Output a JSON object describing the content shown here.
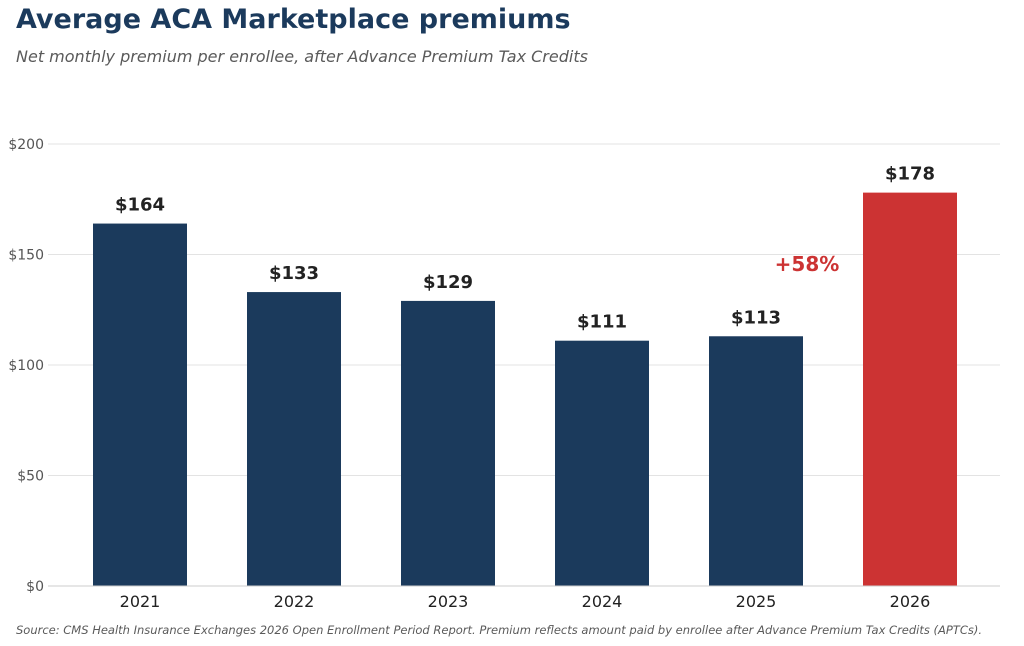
{
  "chart_data": {
    "type": "bar",
    "title": "Average ACA Marketplace premiums",
    "subtitle": "Net monthly premium per enrollee, after Advance Premium Tax Credits",
    "categories": [
      "2021",
      "2022",
      "2023",
      "2024",
      "2025",
      "2026"
    ],
    "values": [
      164,
      133,
      129,
      111,
      113,
      178
    ],
    "data_labels": [
      "$164",
      "$133",
      "$129",
      "$111",
      "$113",
      "$178"
    ],
    "ylim": [
      0,
      200
    ],
    "yticks": [
      0,
      50,
      100,
      150,
      200
    ],
    "ytick_labels": [
      "$0",
      "$50",
      "$100",
      "$150",
      "$200"
    ],
    "xlabel": "",
    "ylabel": "",
    "grid": "horizontal",
    "legend": "none",
    "bar_color": "#1b3a5c",
    "highlight_color": "#cc3333",
    "highlight_index": 5,
    "annotation": {
      "text": "+58%",
      "color": "#cc3333",
      "near_category": "2026"
    },
    "source": "Source: CMS Health Insurance Exchanges 2026 Open Enrollment Period Report. Premium reflects amount paid by enrollee after Advance Premium Tax Credits (APTCs)."
  }
}
